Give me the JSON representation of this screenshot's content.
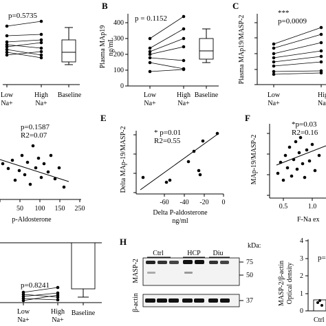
{
  "panels": {
    "A": {
      "p": "p=0.5735",
      "x_low": [
        "Low",
        "Na+"
      ],
      "x_high": [
        "High",
        "Na+"
      ],
      "baseline": "Baseline"
    },
    "B": {
      "letter": "B",
      "p": "p = 0.1152",
      "ylabel1": "Plasma MAp19",
      "ylabel2": "ng/mL",
      "yticks": [
        "0",
        "100",
        "200",
        "300",
        "400"
      ],
      "x_low": [
        "Low",
        "Na+"
      ],
      "x_high": [
        "High",
        "Na+"
      ],
      "baseline": "Baseline"
    },
    "C": {
      "letter": "C",
      "stars": "***",
      "p": "p=0.0009",
      "ylabel": "Plasma MAp19/MASP-2",
      "x_low": [
        "Low",
        "Na+"
      ],
      "x_high": [
        "High",
        "Na+"
      ]
    },
    "D": {
      "p": "p=0.1587",
      "r2": "R2=0.07",
      "xticks": [
        "0",
        "50",
        "100",
        "150",
        "200",
        "250"
      ],
      "xlabel": "p-Aldosterone"
    },
    "E": {
      "letter": "E",
      "p": "* p=0.01",
      "r2": "R2=0.55",
      "ylabel": "Delta MAp-19/MASP-2",
      "xticks": [
        "-60",
        "-40",
        "-20",
        "0"
      ],
      "xlabel1": "Delta P-aldosterone",
      "xlabel2": "ng/ml"
    },
    "F": {
      "letter": "F",
      "p": "*p=0.03",
      "r2": "R2=0.16",
      "ylabel": "MAp-19/MASP-2",
      "xticks": [
        "0.5",
        "1.0"
      ],
      "xlabel": "F-Na ex"
    },
    "G": {
      "p": "p=0.8241",
      "x_low": [
        "Low",
        "Na+"
      ],
      "x_high": [
        "High",
        "Na+"
      ],
      "baseline": "Baseline"
    },
    "H": {
      "letter": "H",
      "groups": [
        "Ctrl",
        "HCP",
        "Diu"
      ],
      "kda": "kDa:",
      "masp2": "MASP-2",
      "bactin": "β-actin",
      "mw": [
        "75",
        "50",
        "37"
      ]
    },
    "I": {
      "ylabel1": "MASP-2/β-actin",
      "ylabel2": "Optical density",
      "p_partial": "p=",
      "xlabel": "Ctrl",
      "yticks": [
        "0",
        "1",
        "2",
        "3",
        "4"
      ]
    }
  },
  "chart_data": [
    {
      "id": "A",
      "type": "scatter",
      "series": [
        {
          "values": [
            [
              1,
              0.85
            ],
            [
              2,
              0.95
            ],
            [
              1,
              0.72
            ],
            [
              2,
              0.8
            ],
            [
              1,
              0.66
            ],
            [
              2,
              0.58
            ],
            [
              1,
              0.62
            ],
            [
              2,
              0.7
            ]
          ]
        }
      ]
    },
    {
      "id": "B",
      "type": "scatter",
      "ylim": [
        0,
        450
      ],
      "series": [
        {
          "values": [
            [
              1,
              300
            ],
            [
              2,
              440
            ],
            [
              1,
              240
            ],
            [
              2,
              360
            ],
            [
              1,
              220
            ],
            [
              2,
              300
            ],
            [
              1,
              200
            ],
            [
              2,
              250
            ],
            [
              1,
              180
            ],
            [
              2,
              160
            ],
            [
              1,
              150
            ],
            [
              2,
              110
            ],
            [
              1,
              90
            ],
            [
              2,
              105
            ]
          ]
        }
      ],
      "box": {
        "min": 150,
        "q1": 175,
        "median": 225,
        "q3": 300,
        "max": 365
      }
    },
    {
      "id": "D",
      "type": "scatter",
      "xlim": [
        0,
        250
      ],
      "series": [
        {
          "values": [
            [
              5,
              1.2
            ],
            [
              20,
              1.1
            ],
            [
              40,
              0.9
            ],
            [
              55,
              1.3
            ],
            [
              70,
              1.0
            ],
            [
              80,
              0.6
            ],
            [
              90,
              1.4
            ],
            [
              100,
              0.8
            ],
            [
              110,
              1.5
            ],
            [
              120,
              0.7
            ],
            [
              130,
              1.1
            ],
            [
              140,
              0.5
            ],
            [
              150,
              1.0
            ],
            [
              160,
              0.9
            ],
            [
              210,
              0.4
            ]
          ]
        }
      ]
    },
    {
      "id": "E",
      "type": "scatter",
      "xlim": [
        -80,
        0
      ],
      "series": [
        {
          "values": [
            [
              -72,
              0.05
            ],
            [
              -55,
              -0.05
            ],
            [
              -52,
              -0.02
            ],
            [
              -35,
              0.12
            ],
            [
              -30,
              0.25
            ],
            [
              -28,
              0.3
            ],
            [
              -22,
              0.08
            ],
            [
              -12,
              0.35
            ]
          ]
        }
      ],
      "fit": [
        [
          -75,
          -0.08
        ],
        [
          -8,
          0.36
        ]
      ]
    },
    {
      "id": "F",
      "type": "scatter",
      "xlim": [
        0,
        1.1
      ],
      "series": [
        {
          "values": [
            [
              0.2,
              0.5
            ],
            [
              0.25,
              0.7
            ],
            [
              0.3,
              0.9
            ],
            [
              0.35,
              0.6
            ],
            [
              0.4,
              1.1
            ],
            [
              0.45,
              0.8
            ],
            [
              0.5,
              1.3
            ],
            [
              0.5,
              0.5
            ],
            [
              0.55,
              1.0
            ],
            [
              0.6,
              1.4
            ],
            [
              0.6,
              0.7
            ],
            [
              0.65,
              0.9
            ],
            [
              0.7,
              1.2
            ],
            [
              0.75,
              0.6
            ],
            [
              0.8,
              1.0
            ],
            [
              0.85,
              1.3
            ],
            [
              0.95,
              0.8
            ]
          ]
        }
      ]
    },
    {
      "id": "G",
      "type": "scatter",
      "series": [
        {
          "values": [
            [
              1,
              0.55
            ],
            [
              2,
              0.45
            ],
            [
              1,
              0.4
            ],
            [
              2,
              0.5
            ],
            [
              1,
              0.3
            ],
            [
              2,
              0.35
            ],
            [
              1,
              0.25
            ],
            [
              2,
              0.3
            ]
          ]
        }
      ],
      "bar": {
        "value": 1.9,
        "error": 0.25
      }
    },
    {
      "id": "I",
      "type": "bar",
      "ylim": [
        0,
        4
      ],
      "categories": [
        "Ctrl"
      ],
      "values": [
        0.8
      ]
    }
  ]
}
